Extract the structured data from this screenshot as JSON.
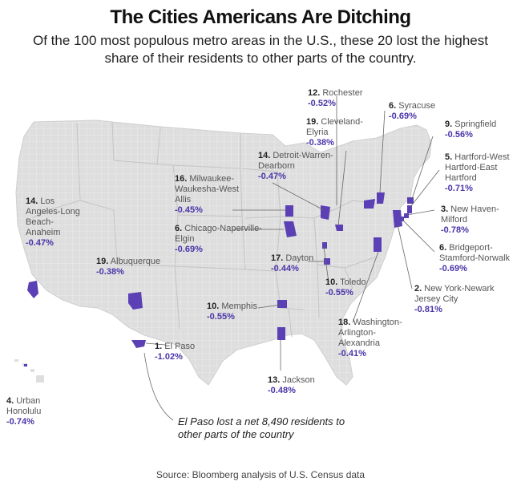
{
  "title": "The Cities Americans Are Ditching",
  "subtitle": "Of the 100 most populous metro areas in the U.S., these 20 lost the highest share of their residents to other parts of the country.",
  "source": "Source: Bloomberg analysis of U.S. Census data",
  "note": "El Paso lost a net 8,490 residents to other parts of the country",
  "colors": {
    "highlight": "#5b3fb5",
    "land": "#dedede",
    "county_lines": "#ffffff",
    "percent_text": "#4b34a8"
  },
  "cities": [
    {
      "rank": "1.",
      "name": "El Paso",
      "pct": "-1.02%"
    },
    {
      "rank": "2.",
      "name": "New York-Newark Jersey City",
      "pct": "-0.81%"
    },
    {
      "rank": "3.",
      "name": "New Haven-Milford",
      "pct": "-0.78%"
    },
    {
      "rank": "4.",
      "name": "Urban Honolulu",
      "pct": "-0.74%"
    },
    {
      "rank": "5.",
      "name": "Hartford-West Hartford-East Hartford",
      "pct": "-0.71%"
    },
    {
      "rank": "6.",
      "name": "Syracuse",
      "pct": "-0.69%"
    },
    {
      "rank": "6.",
      "name": "Bridgeport-Stamford-Norwalk",
      "pct": "-0.69%"
    },
    {
      "rank": "6.",
      "name": "Chicago-Naperville-Elgin",
      "pct": "-0.69%"
    },
    {
      "rank": "9.",
      "name": "Springfield",
      "pct": "-0.56%"
    },
    {
      "rank": "10.",
      "name": "Toledo",
      "pct": "-0.55%"
    },
    {
      "rank": "10.",
      "name": "Memphis",
      "pct": "-0.55%"
    },
    {
      "rank": "12.",
      "name": "Rochester",
      "pct": "-0.52%"
    },
    {
      "rank": "13.",
      "name": "Jackson",
      "pct": "-0.48%"
    },
    {
      "rank": "14.",
      "name": "Los Angeles-Long Beach-Anaheim",
      "pct": "-0.47%"
    },
    {
      "rank": "14.",
      "name": "Detroit-Warren-Dearborn",
      "pct": "-0.47%"
    },
    {
      "rank": "16.",
      "name": "Milwaukee-Waukesha-West Allis",
      "pct": "-0.45%"
    },
    {
      "rank": "17.",
      "name": "Dayton",
      "pct": "-0.44%"
    },
    {
      "rank": "18.",
      "name": "Washington-Arlington-Alexandria",
      "pct": "-0.41%"
    },
    {
      "rank": "19.",
      "name": "Cleveland-Elyria",
      "pct": "-0.38%"
    },
    {
      "rank": "19.",
      "name": "Albuquerque",
      "pct": "-0.38%"
    }
  ]
}
